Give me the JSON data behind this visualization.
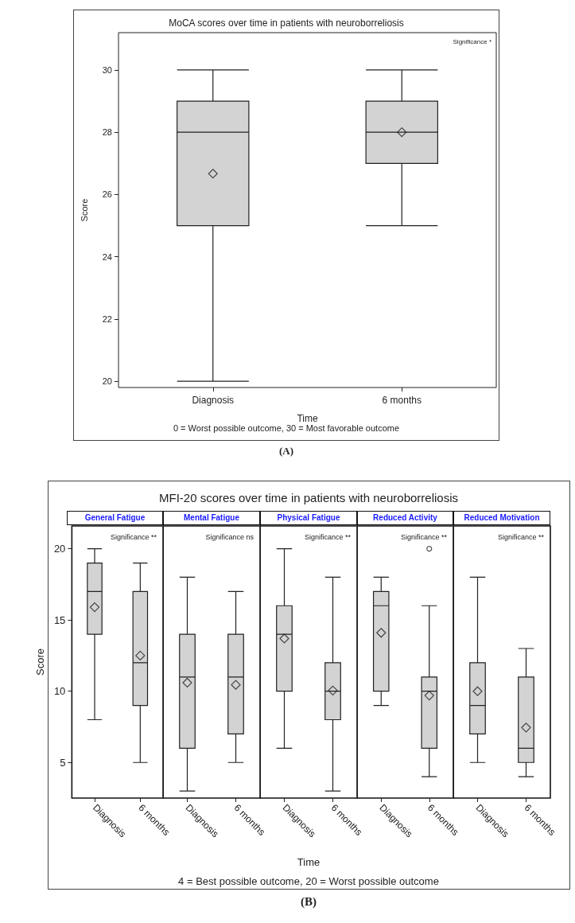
{
  "chart_data": [
    {
      "type": "box",
      "title": "MoCA scores over time in patients with neuroborreliosis",
      "xlabel": "Time",
      "ylabel": "Score",
      "categories": [
        "Diagnosis",
        "6 months"
      ],
      "series": [
        {
          "color": "#d3d3d3",
          "boxes": [
            {
              "low": 20,
              "q1": 25,
              "median": 28,
              "q3": 29,
              "high": 30,
              "mean": 26.67
            },
            {
              "low": 25,
              "q1": 27,
              "median": 28,
              "q3": 29,
              "high": 30,
              "mean": 28
            }
          ]
        }
      ],
      "ylim": [
        19.8,
        31.2
      ],
      "yticks": [
        20,
        22,
        24,
        26,
        28,
        30
      ],
      "marker": "diamond",
      "annotations": [
        "Significance *",
        "0 = Worst possible outcome, 30 = Most favorable outcome",
        "(A)"
      ]
    },
    {
      "type": "box",
      "subtitle": "General Fatigue",
      "ylabel": "Score",
      "categories": [
        "Diagnosis",
        "6 months"
      ],
      "series": [
        {
          "color": "#d3d3d3",
          "boxes": [
            {
              "low": 8,
              "q1": 14,
              "median": 17,
              "q3": 19,
              "high": 20,
              "mean": 15.9
            },
            {
              "low": 5,
              "q1": 9,
              "median": 12,
              "q3": 17,
              "high": 19,
              "mean": 12.5
            }
          ]
        }
      ],
      "ylim": [
        2.5,
        21.6
      ],
      "yticks": [
        5,
        10,
        15,
        20
      ],
      "marker": "diamond",
      "annotations": [
        "Significance **"
      ]
    },
    {
      "type": "box",
      "subtitle": "Mental Fatigue",
      "categories": [
        "Diagnosis",
        "6 months"
      ],
      "series": [
        {
          "color": "#d3d3d3",
          "boxes": [
            {
              "low": 3,
              "q1": 6,
              "median": 11,
              "q3": 14,
              "high": 18,
              "mean": 10.6
            },
            {
              "low": 5,
              "q1": 7,
              "median": 11,
              "q3": 14,
              "high": 17,
              "mean": 10.45
            }
          ]
        }
      ],
      "ylim": [
        2.5,
        21.6
      ],
      "yticks": [
        5,
        10,
        15,
        20
      ],
      "tick_labels": "x",
      "marker": "diamond",
      "annotations": [
        "Significance ns"
      ]
    },
    {
      "type": "box",
      "title": "MFI-20 scores over time in patients with neuroborreliosis",
      "subtitle": "Physical Fatigue",
      "xlabel": "Time",
      "categories": [
        "Diagnosis",
        "6 months"
      ],
      "series": [
        {
          "color": "#d3d3d3",
          "boxes": [
            {
              "low": 6,
              "q1": 10,
              "median": 14,
              "q3": 16,
              "high": 20,
              "mean": 13.7
            },
            {
              "low": 3,
              "q1": 8,
              "median": 10,
              "q3": 12,
              "high": 18,
              "mean": 10.05
            }
          ]
        }
      ],
      "ylim": [
        2.5,
        21.6
      ],
      "yticks": [
        5,
        10,
        15,
        20
      ],
      "tick_labels": "x",
      "marker": "diamond",
      "annotations": [
        "Significance **",
        "4 = Best possible outcome, 20 = Worst possible outcome",
        "(B)"
      ]
    },
    {
      "type": "box",
      "subtitle": "Reduced Activity",
      "categories": [
        "Diagnosis",
        "6 months"
      ],
      "series": [
        {
          "color": "#d3d3d3",
          "boxes": [
            {
              "low": 9,
              "q1": 10,
              "median": 16,
              "q3": 17,
              "high": 18,
              "mean": 14.1
            },
            {
              "low": 4,
              "q1": 6,
              "median": 10,
              "q3": 11,
              "high": 16,
              "mean": 9.7,
              "outliers": [
                20
              ]
            }
          ]
        }
      ],
      "ylim": [
        2.5,
        21.6
      ],
      "yticks": [
        5,
        10,
        15,
        20
      ],
      "tick_labels": "x",
      "marker": "diamond",
      "annotations": [
        "Significance **"
      ]
    },
    {
      "type": "box",
      "subtitle": "Reduced Motivation",
      "categories": [
        "Diagnosis",
        "6 months"
      ],
      "series": [
        {
          "color": "#d3d3d3",
          "boxes": [
            {
              "low": 5,
              "q1": 7,
              "median": 9,
              "q3": 12,
              "high": 18,
              "mean": 10
            },
            {
              "low": 4,
              "q1": 5,
              "median": 6,
              "q3": 11,
              "high": 13,
              "mean": 7.45
            }
          ]
        }
      ],
      "ylim": [
        2.5,
        21.6
      ],
      "yticks": [
        5,
        10,
        15,
        20
      ],
      "tick_labels": "x",
      "marker": "diamond",
      "annotations": [
        "Significance **"
      ]
    }
  ]
}
